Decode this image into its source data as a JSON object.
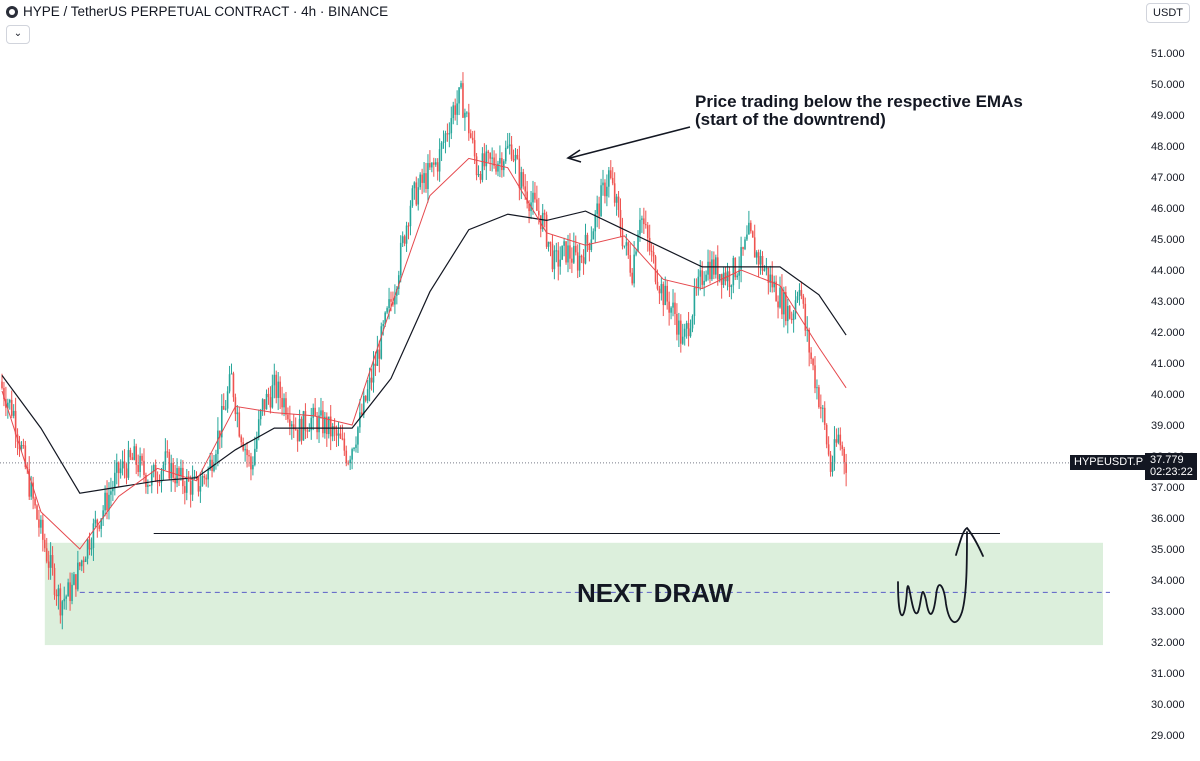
{
  "header": {
    "title": "HYPE / TetherUS PERPETUAL CONTRACT · 4h · BINANCE",
    "collapse_glyph": "⌄",
    "currency": "USDT"
  },
  "ticker_label": "HYPEUSDT.P",
  "last_price": "37.779",
  "countdown": "02:23:22",
  "icons": [
    "exchange-logo-icon",
    "chevron-down-icon",
    "arrow-icon"
  ],
  "colors": {
    "up": "#26a69a",
    "down": "#ef5350",
    "ema_fast": "#e5484d",
    "ema_slow": "#131722",
    "zone": "#dcefdc"
  },
  "chart_data": {
    "type": "candlestick",
    "title": "HYPE / TetherUS PERPETUAL CONTRACT · 4h · BINANCE",
    "ylim": [
      28.5,
      51.6
    ],
    "y_ticks": [
      "51.000",
      "50.000",
      "49.000",
      "48.000",
      "47.000",
      "46.000",
      "45.000",
      "44.000",
      "43.000",
      "42.000",
      "41.000",
      "40.000",
      "39.000",
      "38.000",
      "37.000",
      "36.000",
      "35.000",
      "34.000",
      "33.000",
      "32.000",
      "31.000",
      "30.000",
      "29.000"
    ],
    "grid": false,
    "close_path": [
      [
        0,
        40.2
      ],
      [
        6,
        39.4
      ],
      [
        12,
        37.6
      ],
      [
        18,
        36.0
      ],
      [
        24,
        34.6
      ],
      [
        30,
        33.3
      ],
      [
        36,
        33.7
      ],
      [
        44,
        35.2
      ],
      [
        52,
        36.3
      ],
      [
        60,
        37.5
      ],
      [
        68,
        37.9
      ],
      [
        76,
        37.2
      ],
      [
        84,
        37.8
      ],
      [
        92,
        37.2
      ],
      [
        100,
        37.0
      ],
      [
        106,
        37.5
      ],
      [
        112,
        38.9
      ],
      [
        118,
        40.5
      ],
      [
        122,
        39.0
      ],
      [
        128,
        37.6
      ],
      [
        134,
        39.6
      ],
      [
        140,
        40.2
      ],
      [
        146,
        39.7
      ],
      [
        152,
        38.8
      ],
      [
        158,
        39.2
      ],
      [
        166,
        39.0
      ],
      [
        172,
        38.6
      ],
      [
        178,
        38.0
      ],
      [
        184,
        39.1
      ],
      [
        190,
        40.5
      ],
      [
        196,
        42.0
      ],
      [
        202,
        43.5
      ],
      [
        210,
        46.2
      ],
      [
        216,
        46.8
      ],
      [
        224,
        47.5
      ],
      [
        232,
        49.2
      ],
      [
        236,
        49.6
      ],
      [
        240,
        48.6
      ],
      [
        244,
        47.3
      ],
      [
        250,
        47.4
      ],
      [
        256,
        47.6
      ],
      [
        262,
        48.0
      ],
      [
        266,
        47.0
      ],
      [
        272,
        46.2
      ],
      [
        278,
        45.6
      ],
      [
        284,
        44.2
      ],
      [
        290,
        44.6
      ],
      [
        296,
        44.3
      ],
      [
        302,
        45.0
      ],
      [
        308,
        46.3
      ],
      [
        312,
        47.1
      ],
      [
        316,
        46.0
      ],
      [
        320,
        44.8
      ],
      [
        324,
        44.0
      ],
      [
        328,
        45.9
      ],
      [
        334,
        44.4
      ],
      [
        340,
        43.2
      ],
      [
        346,
        42.6
      ],
      [
        350,
        41.6
      ],
      [
        356,
        43.0
      ],
      [
        362,
        44.2
      ],
      [
        368,
        44.0
      ],
      [
        374,
        43.8
      ],
      [
        380,
        44.3
      ],
      [
        384,
        45.1
      ],
      [
        388,
        44.5
      ],
      [
        394,
        43.8
      ],
      [
        400,
        43.1
      ],
      [
        406,
        42.5
      ],
      [
        410,
        43.7
      ],
      [
        413,
        42.1
      ],
      [
        418,
        40.5
      ],
      [
        422,
        39.3
      ],
      [
        426,
        37.6
      ],
      [
        430,
        38.6
      ],
      [
        434,
        37.8
      ]
    ],
    "close_path_note": "x: candle index, y: price",
    "ema_fast": [
      [
        0,
        40.1
      ],
      [
        20,
        36.2
      ],
      [
        40,
        35.0
      ],
      [
        60,
        36.7
      ],
      [
        80,
        37.6
      ],
      [
        100,
        37.2
      ],
      [
        120,
        39.6
      ],
      [
        140,
        39.4
      ],
      [
        160,
        39.3
      ],
      [
        180,
        39.0
      ],
      [
        200,
        42.8
      ],
      [
        220,
        46.4
      ],
      [
        240,
        47.6
      ],
      [
        260,
        47.3
      ],
      [
        280,
        45.2
      ],
      [
        300,
        44.8
      ],
      [
        320,
        45.1
      ],
      [
        340,
        43.7
      ],
      [
        360,
        43.4
      ],
      [
        380,
        44.0
      ],
      [
        400,
        43.5
      ],
      [
        420,
        41.5
      ],
      [
        434,
        40.2
      ]
    ],
    "ema_slow": [
      [
        0,
        40.6
      ],
      [
        20,
        38.9
      ],
      [
        40,
        36.8
      ],
      [
        60,
        37.0
      ],
      [
        80,
        37.2
      ],
      [
        100,
        37.3
      ],
      [
        120,
        38.2
      ],
      [
        140,
        38.9
      ],
      [
        160,
        38.9
      ],
      [
        180,
        38.9
      ],
      [
        200,
        40.5
      ],
      [
        220,
        43.3
      ],
      [
        240,
        45.3
      ],
      [
        260,
        45.8
      ],
      [
        280,
        45.6
      ],
      [
        300,
        45.9
      ],
      [
        320,
        45.3
      ],
      [
        340,
        44.7
      ],
      [
        360,
        44.1
      ],
      [
        380,
        44.1
      ],
      [
        400,
        44.1
      ],
      [
        420,
        43.2
      ],
      [
        434,
        41.9
      ]
    ],
    "horizontal_line": {
      "y": 35.5,
      "x_start": 78,
      "x_end": 500
    },
    "zone": {
      "y_low": 31.9,
      "y_high": 35.2,
      "label": "NEXT DRAW",
      "midline": 33.6
    },
    "annotations": [
      {
        "text": "Price trading below the respective EMAs",
        "line2": "(start of the downtrend)"
      }
    ]
  }
}
